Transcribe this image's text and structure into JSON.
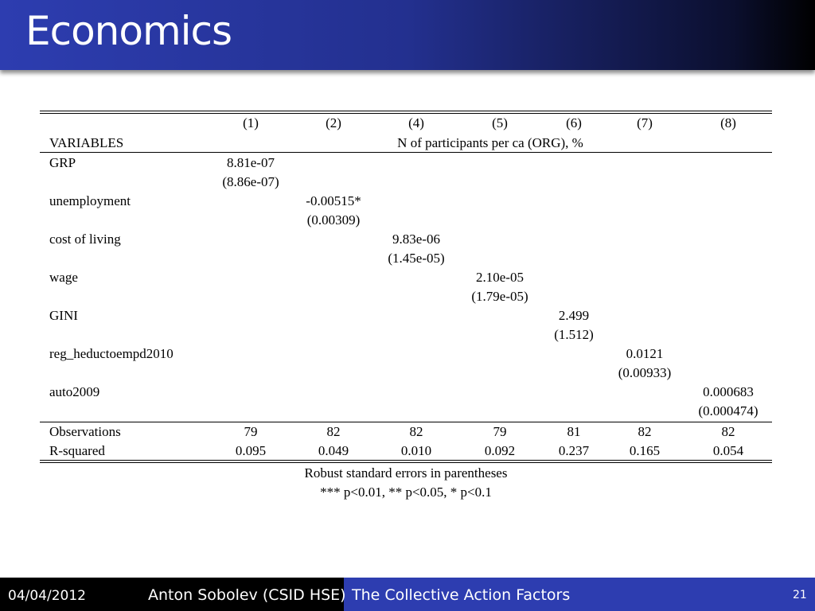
{
  "header": {
    "title": "Economics"
  },
  "table": {
    "columns": [
      "(1)",
      "(2)",
      "(4)",
      "(5)",
      "(6)",
      "(7)",
      "(8)"
    ],
    "row_label_header": "VARIABLES",
    "dependent_variable": "N of participants per ca (ORG), %",
    "variables": [
      {
        "name": "GRP",
        "coef": "8.81e-07",
        "se": "(8.86e-07)"
      },
      {
        "name": "unemployment",
        "coef": "-0.00515*",
        "se": "(0.00309)"
      },
      {
        "name": "cost of living",
        "coef": "9.83e-06",
        "se": "(1.45e-05)"
      },
      {
        "name": "wage",
        "coef": "2.10e-05",
        "se": "(1.79e-05)"
      },
      {
        "name": "GINI",
        "coef": "2.499",
        "se": "(1.512)"
      },
      {
        "name": "reg_heductoempd2010",
        "coef": "0.0121",
        "se": "(0.00933)"
      },
      {
        "name": "auto2009",
        "coef": "0.000683",
        "se": "(0.000474)"
      }
    ],
    "stats": [
      {
        "name": "Observations",
        "values": [
          "79",
          "82",
          "82",
          "79",
          "81",
          "82",
          "82"
        ]
      },
      {
        "name": "R-squared",
        "values": [
          "0.095",
          "0.049",
          "0.010",
          "0.092",
          "0.237",
          "0.165",
          "0.054"
        ]
      }
    ],
    "notes": [
      "Robust standard errors in parentheses",
      "*** p<0.01, ** p<0.05, * p<0.1"
    ]
  },
  "footer": {
    "date": "04/04/2012",
    "author": "Anton Sobolev (CSID HSE)",
    "title": "The Collective Action Factors",
    "page": "21"
  }
}
